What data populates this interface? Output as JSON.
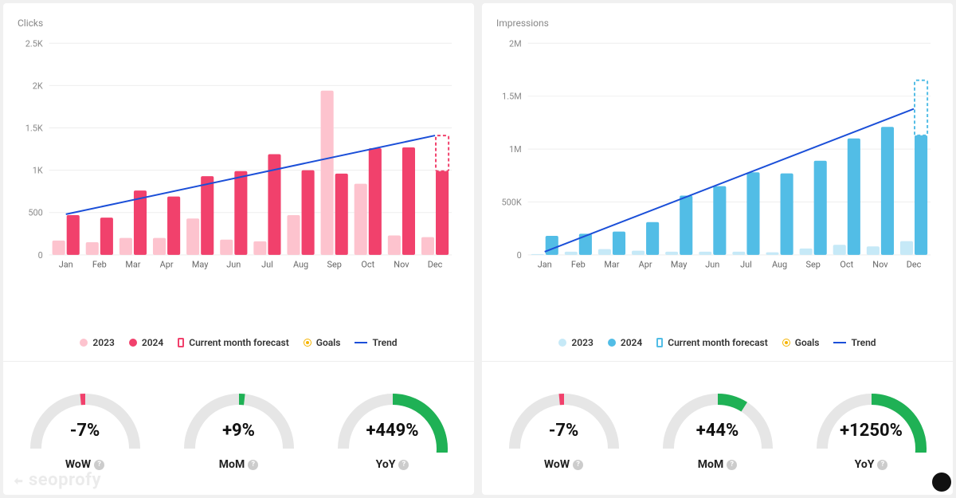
{
  "panels": [
    {
      "title": "Clicks",
      "color_2023": "#fdc3ce",
      "color_2024": "#f1416c",
      "trend_color": "#1b4fd8",
      "forecast_dash_color": "#f1416c",
      "yaxis": {
        "min": 0,
        "max": 2500,
        "step": 500,
        "labels": [
          "0",
          "500",
          "1K",
          "1.5K",
          "2K",
          "2.5K"
        ]
      },
      "months": [
        "Jan",
        "Feb",
        "Mar",
        "Apr",
        "May",
        "Jun",
        "Jul",
        "Aug",
        "Sep",
        "Oct",
        "Nov",
        "Dec"
      ],
      "data_2023": [
        170,
        150,
        200,
        200,
        430,
        180,
        160,
        470,
        1940,
        840,
        230,
        210
      ],
      "data_2024": [
        470,
        440,
        760,
        690,
        930,
        990,
        1190,
        1000,
        960,
        1260,
        1270,
        990
      ],
      "forecast_value": 1410,
      "trend": {
        "start": 480,
        "end": 1410
      },
      "legend": {
        "y2023": "2023",
        "y2024": "2024",
        "forecast": "Current month forecast",
        "goals": "Goals",
        "trend": "Trend"
      },
      "gauges": [
        {
          "value": "-7%",
          "label": "WoW",
          "fraction": 0.03,
          "color": "#f1416c",
          "direction": "neg"
        },
        {
          "value": "+9%",
          "label": "MoM",
          "fraction": 0.035,
          "color": "#1fb155",
          "direction": "pos"
        },
        {
          "value": "+449%",
          "label": "YoY",
          "fraction": 0.58,
          "color": "#1fb155",
          "direction": "pos"
        }
      ]
    },
    {
      "title": "Impressions",
      "color_2023": "#c6e9f7",
      "color_2024": "#52bde6",
      "trend_color": "#1b4fd8",
      "forecast_dash_color": "#52bde6",
      "yaxis": {
        "min": 0,
        "max": 2000000,
        "step": 500000,
        "labels": [
          "0",
          "500K",
          "1M",
          "1.5M",
          "2M"
        ]
      },
      "months": [
        "Jan",
        "Feb",
        "Mar",
        "Apr",
        "May",
        "Jun",
        "Jul",
        "Aug",
        "Sep",
        "Oct",
        "Nov",
        "Dec"
      ],
      "data_2023": [
        8000,
        30000,
        55000,
        40000,
        30000,
        30000,
        30000,
        25000,
        60000,
        95000,
        80000,
        130000
      ],
      "data_2024": [
        180000,
        200000,
        220000,
        310000,
        560000,
        650000,
        780000,
        770000,
        890000,
        1100000,
        1210000,
        1130000
      ],
      "forecast_value": 1650000,
      "trend": {
        "start": 30000,
        "end": 1380000
      },
      "legend": {
        "y2023": "2023",
        "y2024": "2024",
        "forecast": "Current month forecast",
        "goals": "Goals",
        "trend": "Trend"
      },
      "gauges": [
        {
          "value": "-7%",
          "label": "WoW",
          "fraction": 0.03,
          "color": "#f1416c",
          "direction": "neg"
        },
        {
          "value": "+44%",
          "label": "MoM",
          "fraction": 0.18,
          "color": "#1fb155",
          "direction": "pos"
        },
        {
          "value": "+1250%",
          "label": "YoY",
          "fraction": 0.72,
          "color": "#1fb155",
          "direction": "pos"
        }
      ]
    }
  ],
  "watermark": "seoprofy",
  "grid_color": "#eeeeee",
  "axis_text_color": "#888888",
  "gauge_track_color": "#e6e6e6"
}
